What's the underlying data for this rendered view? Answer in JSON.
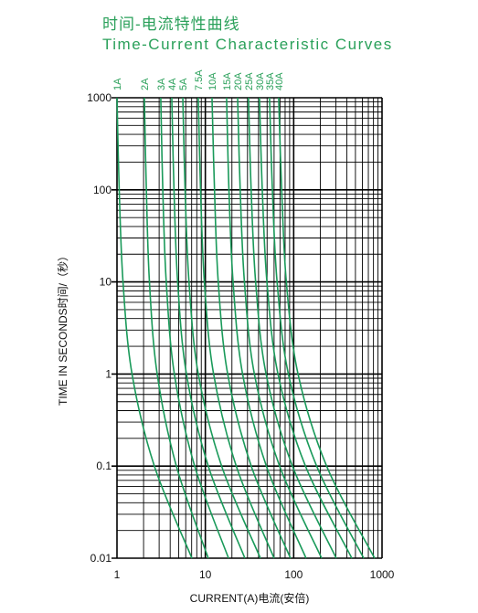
{
  "chart_data": {
    "type": "line",
    "title": "时间-电流特性曲线",
    "subtitle": "Time-Current Characteristic Curves",
    "x_label": "CURRENT(A)电流(安倍)",
    "y_label": "TIME IN SECONDS时间/（秒）",
    "log_x": true,
    "log_y": true,
    "grid": true,
    "minor_grid": true,
    "xlim": [
      1,
      1000
    ],
    "xticks": [
      1,
      10,
      100,
      1000
    ],
    "ylim": [
      0.01,
      1000
    ],
    "yticks": [
      1000,
      100,
      10,
      1,
      0.1,
      0.01
    ],
    "y": [
      1000,
      100,
      10,
      1,
      0.1,
      0.01
    ],
    "series": [
      {
        "name": "1A",
        "color": "#1a9a5a",
        "x": [
          1.0,
          1.06,
          1.17,
          1.48,
          2.65,
          7.05
        ]
      },
      {
        "name": "2A",
        "color": "#1a9a5a",
        "x": [
          2.04,
          2.15,
          2.33,
          2.85,
          4.7,
          10.8
        ]
      },
      {
        "name": "3A",
        "color": "#1a9a5a",
        "x": [
          3.13,
          3.3,
          3.61,
          4.46,
          7.57,
          18.3
        ]
      },
      {
        "name": "4A",
        "color": "#1a9a5a",
        "x": [
          4.17,
          4.42,
          4.86,
          6.11,
          10.8,
          28
        ]
      },
      {
        "name": "5A",
        "color": "#1a9a5a",
        "x": [
          5.56,
          5.9,
          6.53,
          8.32,
          15.3,
          42
        ]
      },
      {
        "name": "7.5A",
        "color": "#1a9a5a",
        "x": [
          8.32,
          8.83,
          9.75,
          12.4,
          22.4,
          60
        ]
      },
      {
        "name": "10A",
        "color": "#1a9a5a",
        "x": [
          11.9,
          12.7,
          14,
          17.9,
          33.1,
          92
        ]
      },
      {
        "name": "15A",
        "color": "#1a9a5a",
        "x": [
          17.4,
          18.5,
          20.6,
          26.4,
          49.1,
          138
        ]
      },
      {
        "name": "20A",
        "color": "#1a9a5a",
        "x": [
          23.2,
          24.8,
          27.7,
          35.9,
          69.3,
          207
        ]
      },
      {
        "name": "25A",
        "color": "#1a9a5a",
        "x": [
          30.8,
          33,
          37.1,
          48.7,
          96.8,
          303
        ]
      },
      {
        "name": "30A",
        "color": "#1a9a5a",
        "x": [
          41,
          44.1,
          49.8,
          66.4,
          136,
          455
        ]
      },
      {
        "name": "35A",
        "color": "#1a9a5a",
        "x": [
          53.3,
          57.4,
          64.9,
          87.1,
          182,
          620
        ]
      },
      {
        "name": "40A",
        "color": "#1a9a5a",
        "x": [
          67.6,
          73.1,
          82.6,
          112,
          236,
          824
        ]
      }
    ]
  }
}
